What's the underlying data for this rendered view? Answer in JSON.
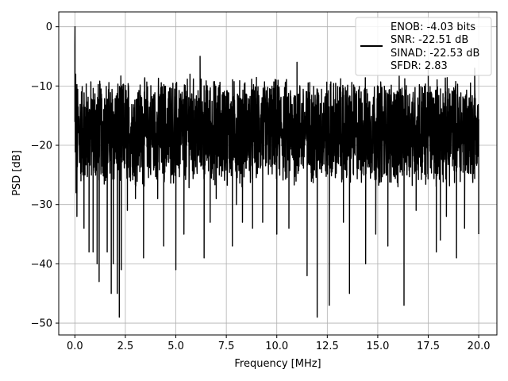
{
  "chart_data": {
    "type": "line",
    "xlabel": "Frequency [MHz]",
    "ylabel": "PSD [dB]",
    "xlim": [
      -0.8,
      20.9
    ],
    "ylim": [
      -52,
      2.5
    ],
    "xticks": [
      0.0,
      2.5,
      5.0,
      7.5,
      10.0,
      12.5,
      15.0,
      17.5,
      20.0
    ],
    "xtick_labels": [
      "0.0",
      "2.5",
      "5.0",
      "7.5",
      "10.0",
      "12.5",
      "15.0",
      "17.5",
      "20.0"
    ],
    "yticks": [
      0,
      -10,
      -20,
      -30,
      -40,
      -50
    ],
    "ytick_labels": [
      "0",
      "−10",
      "−20",
      "−30",
      "−40",
      "−50"
    ],
    "grid": true,
    "legend_position": "top-right",
    "legend_entries": [
      "ENOB: -4.03 bits",
      "SNR: -22.51 dB",
      "SINAD: -22.53 dB",
      "SFDR: 2.83"
    ],
    "series": [
      {
        "color": "#000000",
        "noise_floor_db": [
          -28,
          -10
        ],
        "x": [
          0.0,
          0.005,
          0.02,
          0.04,
          0.06,
          0.08,
          0.1,
          0.3,
          0.45,
          0.5,
          0.7,
          0.9,
          1.1,
          1.2,
          1.6,
          1.8,
          1.9,
          2.1,
          2.2,
          2.3,
          2.6,
          3.0,
          3.4,
          4.1,
          4.4,
          5.0,
          5.4,
          5.7,
          6.2,
          6.4,
          6.7,
          7.0,
          7.8,
          8.0,
          8.3,
          8.8,
          9.3,
          10.0,
          10.6,
          11.0,
          11.5,
          12.0,
          12.2,
          12.6,
          13.3,
          13.6,
          14.0,
          14.4,
          14.9,
          15.5,
          16.0,
          16.3,
          16.9,
          17.5,
          17.9,
          18.1,
          18.4,
          18.9,
          19.3,
          19.8,
          20.0
        ],
        "y": [
          -3,
          0,
          -12,
          -8,
          -28,
          -24,
          -32,
          -26,
          -34,
          -25,
          -38,
          -38,
          -40,
          -43,
          -38,
          -45,
          -40,
          -45,
          -49,
          -41,
          -31,
          -29,
          -39,
          -29,
          -37,
          -41,
          -35,
          -8,
          -5,
          -39,
          -33,
          -29,
          -37,
          -30,
          -33,
          -34,
          -33,
          -35,
          -34,
          -6,
          -42,
          -49,
          -22,
          -47,
          -33,
          -45,
          -21,
          -40,
          -35,
          -37,
          -27,
          -47,
          -31,
          -7,
          -38,
          -36,
          -32,
          -39,
          -34,
          -7,
          -35
        ]
      }
    ]
  }
}
